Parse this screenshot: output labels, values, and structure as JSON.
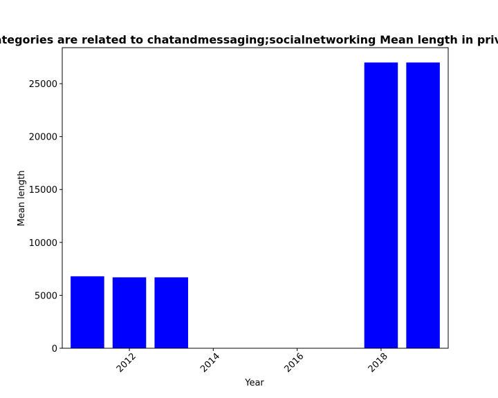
{
  "chart_data": {
    "type": "bar",
    "title": "Which categories are related to chatandmessaging;socialnetworking Mean length in privacy policy",
    "xlabel": "Year",
    "ylabel": "Mean length",
    "x": [
      2011,
      2012,
      2013,
      2018,
      2019
    ],
    "values": [
      6800,
      6700,
      6700,
      27000,
      27000
    ],
    "xlim": [
      2010.4,
      2019.6
    ],
    "ylim": [
      0,
      28400
    ],
    "xticks": [
      2012,
      2014,
      2016,
      2018
    ],
    "xtick_labels": [
      "2012",
      "2014",
      "2016",
      "2018"
    ],
    "yticks": [
      0,
      5000,
      10000,
      15000,
      20000,
      25000
    ],
    "ytick_labels": [
      "0",
      "5000",
      "10000",
      "15000",
      "20000",
      "25000"
    ],
    "bar_color": "#0000ff",
    "grid": false,
    "legend": "none"
  }
}
